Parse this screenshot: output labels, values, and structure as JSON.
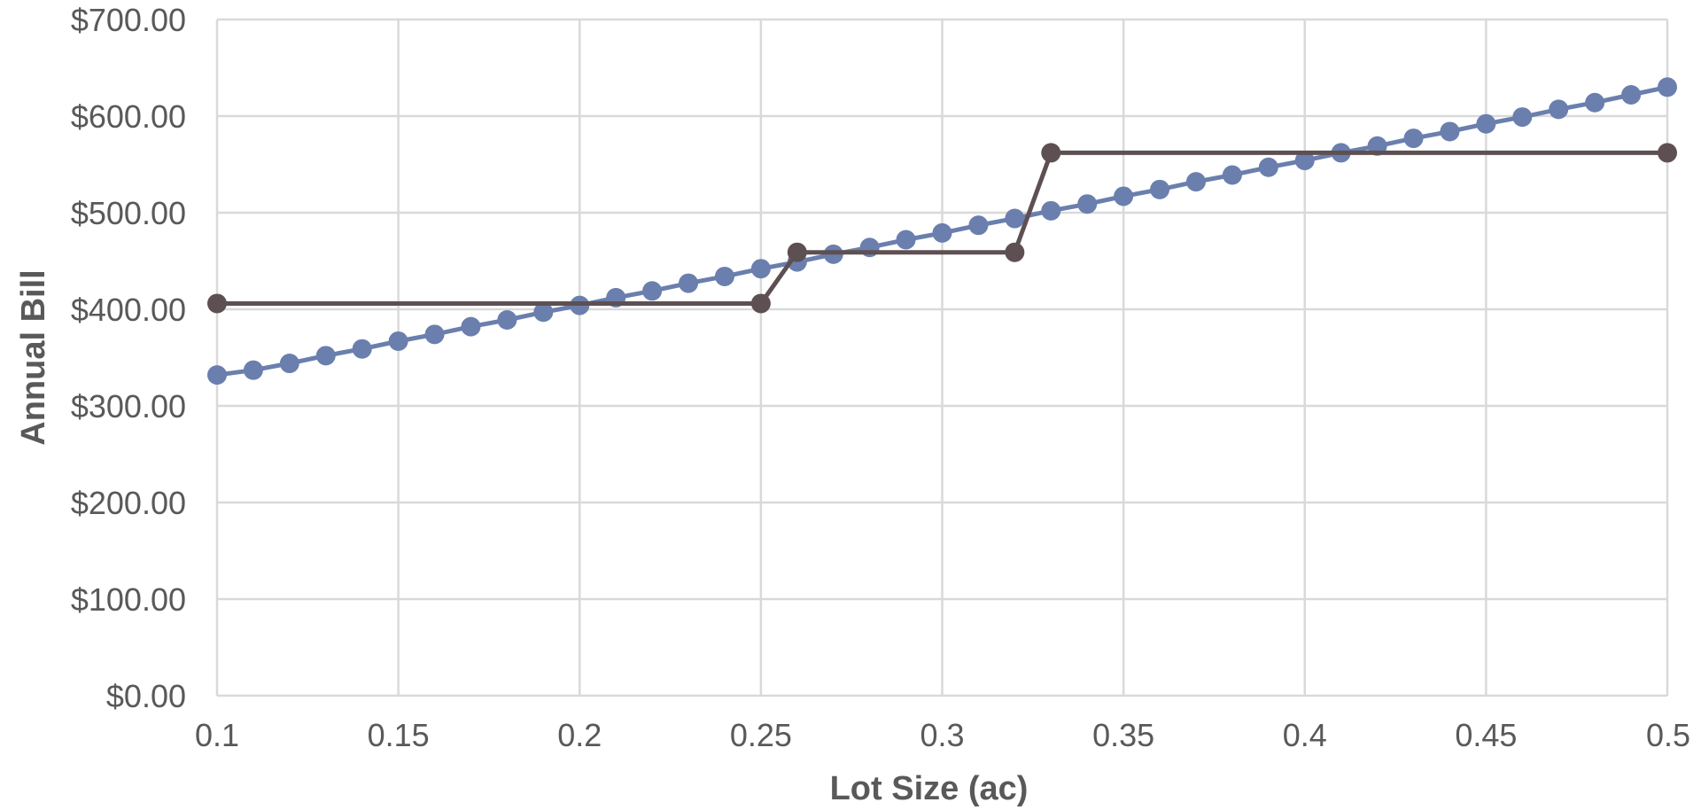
{
  "chart_data": {
    "type": "line",
    "title": "",
    "xlabel": "Lot Size (ac)",
    "ylabel": "Annual Bill",
    "xlim": [
      0.1,
      0.5
    ],
    "ylim": [
      0,
      700
    ],
    "x_ticks": [
      "0.1",
      "0.15",
      "0.2",
      "0.25",
      "0.3",
      "0.35",
      "0.4",
      "0.45",
      "0.5"
    ],
    "x_tick_values": [
      0.1,
      0.15,
      0.2,
      0.25,
      0.3,
      0.35,
      0.4,
      0.45,
      0.5
    ],
    "y_ticks": [
      "$0.00",
      "$100.00",
      "$200.00",
      "$300.00",
      "$400.00",
      "$500.00",
      "$600.00",
      "$700.00"
    ],
    "y_tick_values": [
      0,
      100,
      200,
      300,
      400,
      500,
      600,
      700
    ],
    "grid": true,
    "legend": "none",
    "series": [
      {
        "color": "#6a7fad",
        "marker": "circle",
        "x": [
          0.1,
          0.11,
          0.12,
          0.13,
          0.14,
          0.15,
          0.16,
          0.17,
          0.18,
          0.19,
          0.2,
          0.21,
          0.22,
          0.23,
          0.24,
          0.25,
          0.26,
          0.27,
          0.28,
          0.29,
          0.3,
          0.31,
          0.32,
          0.33,
          0.34,
          0.35,
          0.36,
          0.37,
          0.38,
          0.39,
          0.4,
          0.41,
          0.42,
          0.43,
          0.44,
          0.45,
          0.46,
          0.47,
          0.48,
          0.49,
          0.5
        ],
        "y": [
          332,
          337,
          344,
          352,
          359,
          367,
          374,
          382,
          389,
          397,
          404,
          412,
          419,
          427,
          434,
          442,
          449,
          457,
          464,
          472,
          479,
          487,
          494,
          502,
          509,
          517,
          524,
          532,
          539,
          547,
          554,
          562,
          569,
          577,
          584,
          592,
          599,
          607,
          614,
          622,
          630
        ]
      },
      {
        "color": "#5e5052",
        "marker": "circle",
        "x": [
          0.1,
          0.25,
          0.26,
          0.32,
          0.33,
          0.5
        ],
        "y": [
          406,
          406,
          459,
          459,
          562,
          562
        ]
      }
    ]
  }
}
